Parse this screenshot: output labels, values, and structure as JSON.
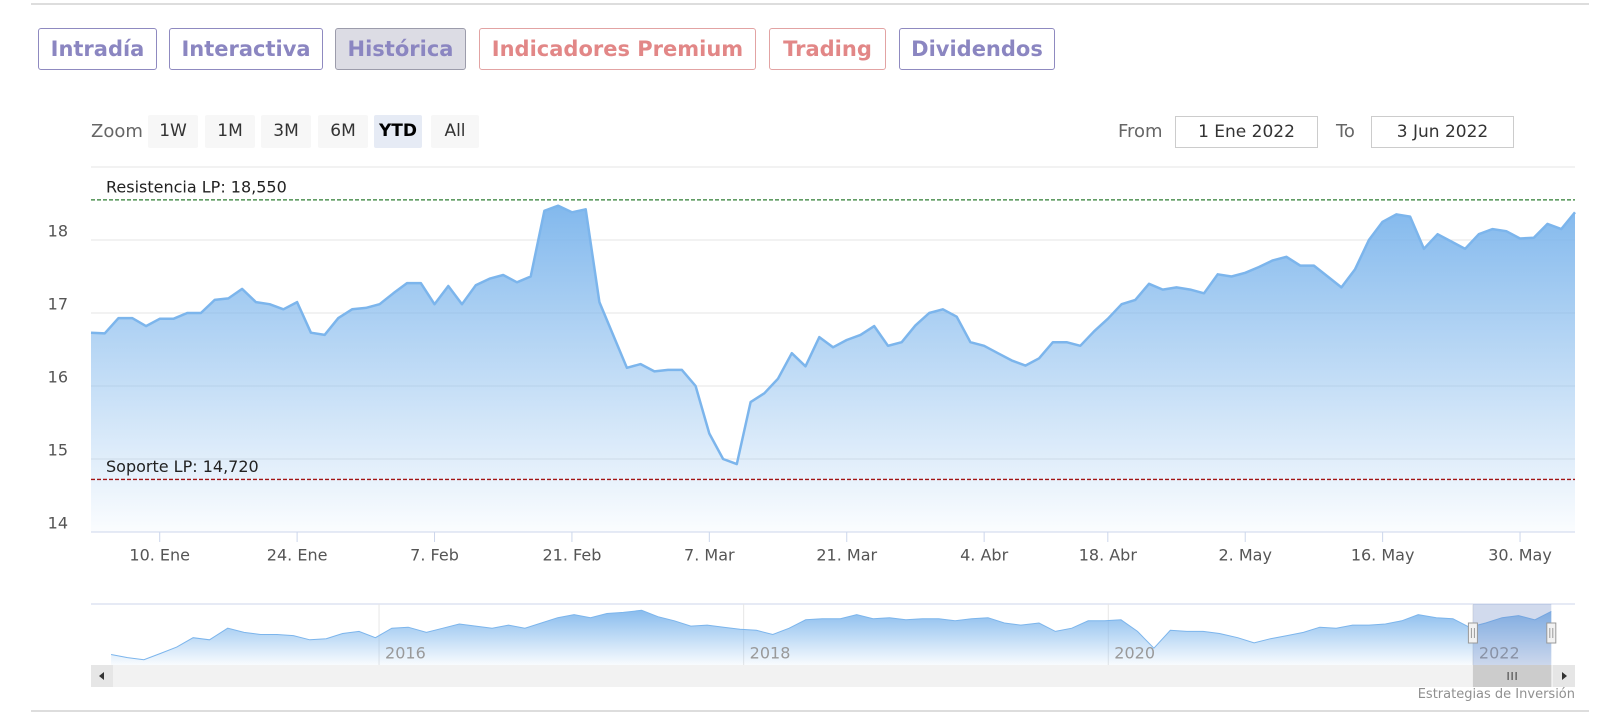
{
  "tabs": [
    "Intradía",
    "Interactiva",
    "Histórica",
    "Indicadores Premium",
    "Trading",
    "Dividendos"
  ],
  "range_selector": {
    "zoom_label": "Zoom",
    "buttons": [
      "1W",
      "1M",
      "3M",
      "6M",
      "YTD",
      "All"
    ],
    "from_label": "From",
    "from": "1 Ene 2022",
    "to_label": "To",
    "to": "3 Jun 2022"
  },
  "chart_data": {
    "type": "area",
    "ordinal": true,
    "color": "#7cb5ec",
    "grid": true,
    "x": [
      "2022-01-03",
      "2022-01-04",
      "2022-01-05",
      "2022-01-06",
      "2022-01-07",
      "2022-01-10",
      "2022-01-11",
      "2022-01-12",
      "2022-01-13",
      "2022-01-14",
      "2022-01-17",
      "2022-01-18",
      "2022-01-19",
      "2022-01-20",
      "2022-01-21",
      "2022-01-24",
      "2022-01-25",
      "2022-01-26",
      "2022-01-27",
      "2022-01-28",
      "2022-01-31",
      "2022-02-01",
      "2022-02-02",
      "2022-02-03",
      "2022-02-04",
      "2022-02-07",
      "2022-02-08",
      "2022-02-09",
      "2022-02-10",
      "2022-02-11",
      "2022-02-14",
      "2022-02-15",
      "2022-02-16",
      "2022-02-17",
      "2022-02-18",
      "2022-02-21",
      "2022-02-22",
      "2022-02-23",
      "2022-02-24",
      "2022-02-25",
      "2022-02-28",
      "2022-03-01",
      "2022-03-02",
      "2022-03-03",
      "2022-03-04",
      "2022-03-07",
      "2022-03-08",
      "2022-03-09",
      "2022-03-10",
      "2022-03-11",
      "2022-03-14",
      "2022-03-15",
      "2022-03-16",
      "2022-03-17",
      "2022-03-18",
      "2022-03-21",
      "2022-03-22",
      "2022-03-23",
      "2022-03-24",
      "2022-03-25",
      "2022-03-28",
      "2022-03-29",
      "2022-03-30",
      "2022-03-31",
      "2022-04-01",
      "2022-04-04",
      "2022-04-05",
      "2022-04-06",
      "2022-04-07",
      "2022-04-08",
      "2022-04-11",
      "2022-04-12",
      "2022-04-13",
      "2022-04-14",
      "2022-04-18",
      "2022-04-19",
      "2022-04-20",
      "2022-04-21",
      "2022-04-22",
      "2022-04-25",
      "2022-04-26",
      "2022-04-27",
      "2022-04-28",
      "2022-04-29",
      "2022-05-02",
      "2022-05-03",
      "2022-05-04",
      "2022-05-05",
      "2022-05-06",
      "2022-05-09",
      "2022-05-10",
      "2022-05-11",
      "2022-05-12",
      "2022-05-13",
      "2022-05-16",
      "2022-05-17",
      "2022-05-18",
      "2022-05-19",
      "2022-05-20",
      "2022-05-23",
      "2022-05-24",
      "2022-05-25",
      "2022-05-26",
      "2022-05-27",
      "2022-05-30",
      "2022-05-31",
      "2022-06-01",
      "2022-06-02",
      "2022-06-03"
    ],
    "values": [
      16.73,
      16.72,
      16.93,
      16.93,
      16.82,
      16.92,
      16.92,
      17.0,
      17.0,
      17.18,
      17.2,
      17.33,
      17.15,
      17.12,
      17.05,
      17.15,
      16.73,
      16.7,
      16.93,
      17.05,
      17.07,
      17.12,
      17.27,
      17.41,
      17.41,
      17.12,
      17.37,
      17.12,
      17.38,
      17.47,
      17.52,
      17.42,
      17.5,
      18.4,
      18.47,
      18.38,
      18.42,
      17.15,
      16.7,
      16.25,
      16.3,
      16.2,
      16.22,
      16.22,
      16.0,
      15.35,
      15.0,
      14.93,
      15.78,
      15.9,
      16.1,
      16.45,
      16.27,
      16.67,
      16.53,
      16.63,
      16.7,
      16.82,
      16.55,
      16.6,
      16.83,
      17.0,
      17.05,
      16.95,
      16.6,
      16.55,
      16.45,
      16.35,
      16.28,
      16.38,
      16.6,
      16.6,
      16.55,
      16.75,
      16.92,
      17.12,
      17.18,
      17.4,
      17.32,
      17.35,
      17.32,
      17.27,
      17.53,
      17.5,
      17.55,
      17.63,
      17.72,
      17.77,
      17.65,
      17.65,
      17.5,
      17.35,
      17.6,
      18.0,
      18.25,
      18.35,
      18.32,
      17.88,
      18.08,
      17.98,
      17.88,
      18.08,
      18.15,
      18.12,
      18.02,
      18.03,
      18.22,
      18.15,
      18.38
    ],
    "ylim": [
      14,
      19
    ],
    "yticks": [
      14,
      15,
      16,
      17,
      18
    ],
    "xticks": [
      {
        "value": "2022-01-10",
        "label": "10. Ene"
      },
      {
        "value": "2022-01-24",
        "label": "24. Ene"
      },
      {
        "value": "2022-02-07",
        "label": "7. Feb"
      },
      {
        "value": "2022-02-21",
        "label": "21. Feb"
      },
      {
        "value": "2022-03-07",
        "label": "7. Mar"
      },
      {
        "value": "2022-03-21",
        "label": "21. Mar"
      },
      {
        "value": "2022-04-04",
        "label": "4. Abr"
      },
      {
        "value": "2022-04-18",
        "label": "18. Abr"
      },
      {
        "value": "2022-05-02",
        "label": "2. May"
      },
      {
        "value": "2022-05-16",
        "label": "16. May"
      },
      {
        "value": "2022-05-30",
        "label": "30. May"
      }
    ],
    "plot_lines": [
      {
        "value": 18.55,
        "label": "Resistencia LP: 18,550",
        "color": "#2e7d32"
      },
      {
        "value": 14.72,
        "label": "Soporte LP: 14,720",
        "color": "#a31515"
      }
    ],
    "navigator": {
      "x": [
        2014.53,
        2014.62,
        2014.71,
        2014.8,
        2014.89,
        2014.98,
        2015.07,
        2015.17,
        2015.26,
        2015.35,
        2015.44,
        2015.53,
        2015.62,
        2015.71,
        2015.8,
        2015.89,
        2015.98,
        2016.07,
        2016.16,
        2016.26,
        2016.35,
        2016.44,
        2016.53,
        2016.62,
        2016.71,
        2016.8,
        2016.89,
        2016.98,
        2017.07,
        2017.16,
        2017.25,
        2017.34,
        2017.44,
        2017.53,
        2017.62,
        2017.71,
        2017.8,
        2017.89,
        2017.98,
        2018.07,
        2018.16,
        2018.25,
        2018.34,
        2018.43,
        2018.53,
        2018.62,
        2018.71,
        2018.8,
        2018.89,
        2018.98,
        2019.07,
        2019.16,
        2019.25,
        2019.34,
        2019.43,
        2019.52,
        2019.62,
        2019.71,
        2019.8,
        2019.89,
        2019.98,
        2020.07,
        2020.16,
        2020.25,
        2020.34,
        2020.43,
        2020.52,
        2020.61,
        2020.71,
        2020.8,
        2020.89,
        2020.98,
        2021.07,
        2021.16,
        2021.25,
        2021.34,
        2021.43,
        2021.52,
        2021.61,
        2021.7,
        2021.8,
        2021.89,
        2021.98,
        2022.07,
        2022.16,
        2022.25,
        2022.34,
        2022.43
      ],
      "values": [
        10.64,
        9.97,
        9.52,
        10.86,
        12.21,
        14.22,
        13.78,
        16.24,
        15.34,
        14.9,
        14.9,
        14.67,
        13.78,
        14.0,
        15.12,
        15.57,
        14.22,
        16.24,
        16.46,
        15.34,
        16.24,
        17.14,
        16.69,
        16.24,
        16.91,
        16.24,
        17.36,
        18.48,
        19.15,
        18.48,
        19.38,
        19.6,
        20.05,
        18.7,
        17.81,
        16.69,
        16.91,
        16.46,
        16.02,
        15.79,
        14.9,
        16.24,
        18.03,
        18.26,
        18.26,
        19.15,
        18.26,
        18.48,
        18.03,
        18.26,
        18.26,
        17.81,
        18.26,
        18.48,
        17.36,
        16.91,
        17.36,
        15.57,
        16.24,
        17.81,
        17.81,
        18.03,
        15.57,
        11.98,
        15.79,
        15.57,
        15.57,
        15.12,
        14.22,
        13.1,
        14.0,
        14.67,
        15.34,
        16.46,
        16.24,
        16.91,
        16.91,
        17.14,
        17.81,
        19.15,
        18.48,
        18.26,
        16.46,
        17.36,
        18.48,
        18.93,
        18.03,
        19.82
      ],
      "ylim": [
        8.4,
        21.4
      ],
      "xlim": [
        2014.42,
        2022.56
      ],
      "xticks": [
        2016,
        2018,
        2020,
        2022
      ],
      "range": [
        2022.0,
        2022.43
      ]
    }
  },
  "credit": "Estrategias de Inversión"
}
